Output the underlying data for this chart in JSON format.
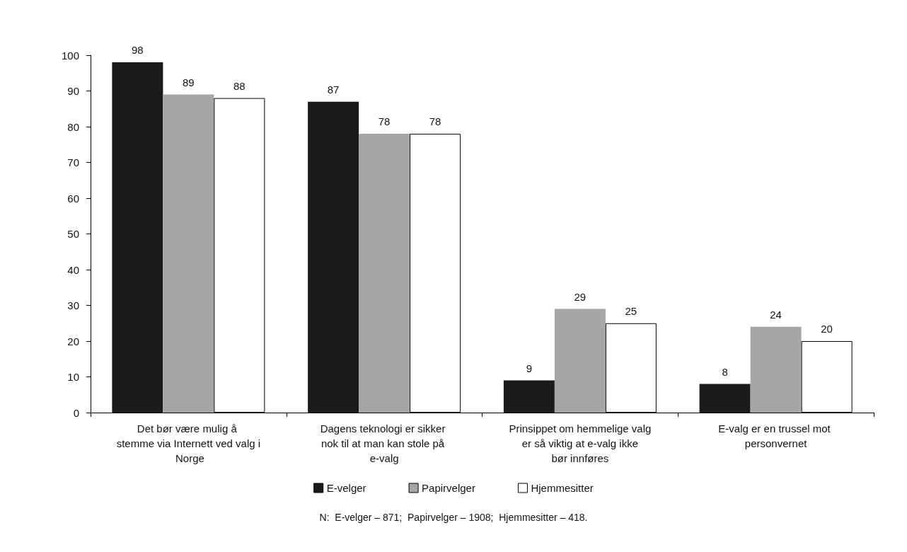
{
  "chart_data": {
    "type": "bar",
    "categories": [
      "Det bør være mulig å stemme via Internett ved valg i Norge",
      "Dagens teknologi er sikker nok til at man kan stole på e-valg",
      "Prinsippet om hemmelige valg er så viktig at e-valg ikke bør innføres",
      "E-valg er en trussel mot personvernet"
    ],
    "series": [
      {
        "name": "E-velger",
        "color": "#1a1a1a",
        "values": [
          98,
          87,
          9,
          8
        ]
      },
      {
        "name": "Papirvelger",
        "color": "#a6a6a6",
        "values": [
          89,
          78,
          29,
          24
        ]
      },
      {
        "name": "Hjemmesitter",
        "color": "#ffffff",
        "values": [
          88,
          78,
          25,
          20
        ]
      }
    ],
    "ylim": [
      0,
      100
    ],
    "yticks": [
      0,
      10,
      20,
      30,
      40,
      50,
      60,
      70,
      80,
      90,
      100
    ],
    "grid": false,
    "legend": "bottom",
    "data_labels": true,
    "annotations": [
      "N:  E-velger – 871;  Papirvelger – 1908;  Hjemmesitter – 418."
    ]
  }
}
